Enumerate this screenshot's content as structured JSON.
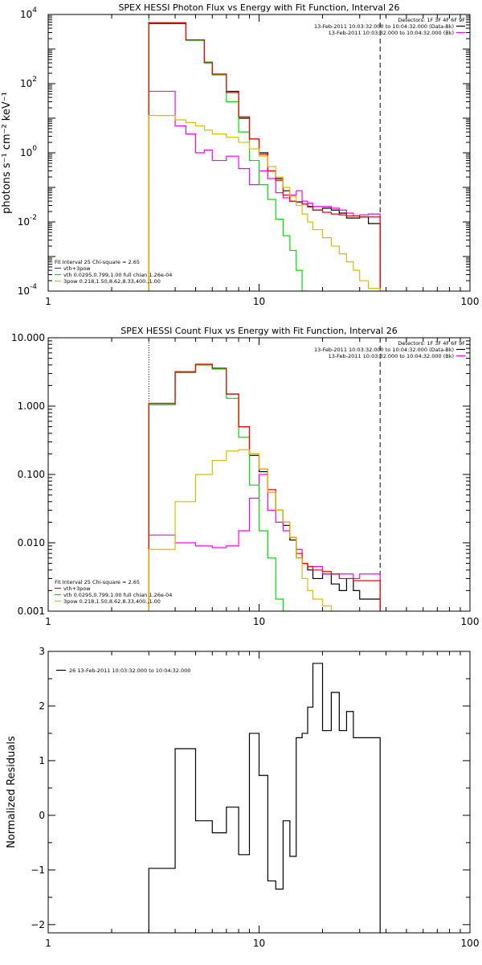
{
  "chart_data": [
    {
      "type": "line",
      "title": "SPEX HESSI Photon Flux vs Energy with Fit Function, Interval 26",
      "ylabel": "photons s⁻¹ cm⁻² keV⁻¹",
      "xlabel": "",
      "xscale": "log",
      "yscale": "log",
      "xlim": [
        1,
        100
      ],
      "ylim": [
        0.0001,
        10000
      ],
      "xticks": [
        {
          "v": 1,
          "label": "1"
        },
        {
          "v": 10,
          "label": "10"
        },
        {
          "v": 100,
          "label": "100"
        }
      ],
      "yticks": [
        {
          "v": 0.0001,
          "label": "10",
          "exp": "-4"
        },
        {
          "v": 0.01,
          "label": "10",
          "exp": "-2"
        },
        {
          "v": 1,
          "label": "10",
          "exp": "0"
        },
        {
          "v": 100,
          "label": "10",
          "exp": "2"
        },
        {
          "v": 10000,
          "label": "10",
          "exp": "4"
        }
      ],
      "vlines": [
        {
          "x": 3.0,
          "style": "dotted"
        },
        {
          "x": 37.5,
          "style": "dashed"
        }
      ],
      "legend_top": [
        "Detectors: 1F 3F 4F 6F 9F",
        "13-Feb-2011 10:03:32.000 to 10:04:32.000 (Data-Bk)",
        "13-Feb-2011 10:03:32.000 to 10:04:32.000 (Bk)"
      ],
      "legend_top_colors": [
        "",
        "#000000",
        "#ff00ff"
      ],
      "legend_bottom": [
        "Fit Interval 25   Chi-square = 2.65",
        "vth+3pow",
        "vth 0.0295,0.799,1.00  full chian 1.26e-04",
        "3pow 0.218,1.50,8.62,8.33,400.,1.00"
      ],
      "legend_bottom_colors": [
        "",
        "#ff0000",
        "#00dd00",
        "#ddbb00"
      ],
      "edges": [
        3.0,
        3.5,
        4.0,
        4.5,
        5.0,
        5.5,
        6.0,
        7.0,
        8.0,
        9.0,
        10.0,
        11.0,
        12.0,
        13.0,
        14.0,
        15.0,
        16.0,
        17.0,
        18.0,
        20.0,
        22.0,
        24.0,
        26.0,
        28.0,
        30.0,
        33.0,
        37.5,
        41.0
      ],
      "series": [
        {
          "color": "#000000",
          "values": [
            5500,
            5500,
            5500,
            1800,
            1800,
            400,
            180,
            60,
            10,
            2.5,
            1.0,
            0.3,
            0.18,
            0.08,
            0.04,
            0.038,
            0.033,
            0.028,
            0.022,
            0.025,
            0.022,
            0.018,
            0.013,
            0.013,
            0.014,
            0.009,
            null
          ]
        },
        {
          "color": "#ff00ff",
          "values": [
            60,
            60,
            6,
            3.5,
            1.0,
            1.2,
            0.6,
            0.8,
            0.35,
            0.12,
            0.3,
            0.18,
            0.07,
            0.05,
            0.06,
            0.08,
            0.04,
            0.035,
            0.028,
            0.028,
            0.025,
            0.022,
            0.018,
            0.015,
            0.016,
            0.017,
            null
          ]
        },
        {
          "color": "#00dd00",
          "values": [
            5800,
            5800,
            5800,
            1800,
            1800,
            400,
            180,
            30,
            4,
            0.6,
            0.12,
            0.045,
            0.012,
            0.004,
            0.0015,
            0.0004,
            0.0001,
            null,
            null,
            null,
            null,
            null,
            null,
            null,
            null,
            null,
            null
          ]
        },
        {
          "color": "#ff0000",
          "values": [
            5800,
            5800,
            5800,
            1850,
            1850,
            420,
            190,
            55,
            11,
            2.5,
            0.9,
            0.3,
            0.16,
            0.06,
            0.04,
            0.037,
            0.033,
            0.027,
            0.022,
            0.019,
            0.017,
            0.016,
            0.015,
            0.015,
            0.014,
            0.014,
            null
          ]
        },
        {
          "color": "#ddbb00",
          "values": [
            12,
            12,
            9,
            7.5,
            6.0,
            4.5,
            3.5,
            2.8,
            2.0,
            1.3,
            0.8,
            0.4,
            0.2,
            0.1,
            0.055,
            0.03,
            0.017,
            0.01,
            0.006,
            0.0035,
            0.002,
            0.0012,
            0.0007,
            0.0004,
            0.0002,
            0.00012,
            0.0001
          ]
        }
      ]
    },
    {
      "type": "line",
      "title": "SPEX HESSI Count Flux vs Energy with Fit Function, Interval 26",
      "ylabel": "",
      "xlabel": "",
      "xscale": "log",
      "yscale": "log",
      "xlim": [
        1,
        100
      ],
      "ylim": [
        0.001,
        10
      ],
      "xticks": [
        {
          "v": 1,
          "label": "1"
        },
        {
          "v": 10,
          "label": "10"
        },
        {
          "v": 100,
          "label": "100"
        }
      ],
      "yticks": [
        {
          "v": 0.001,
          "label": "0.001"
        },
        {
          "v": 0.01,
          "label": "0.010"
        },
        {
          "v": 0.1,
          "label": "0.100"
        },
        {
          "v": 1,
          "label": "1.000"
        },
        {
          "v": 10,
          "label": "10.000"
        }
      ],
      "vlines": [
        {
          "x": 3.0,
          "style": "dotted"
        },
        {
          "x": 37.5,
          "style": "dashed"
        }
      ],
      "legend_top": [
        "Detectors: 1F 3F 4F 6F 9F",
        "13-Feb-2011 10:03:32.000 to 10:04:32.000 (Data-Bk)",
        "13-Feb-2011 10:03:32.000 to 10:04:32.000 (Bk)"
      ],
      "legend_top_colors": [
        "",
        "#000000",
        "#ff00ff"
      ],
      "legend_bottom": [
        "Fit Interval 25   Chi-square = 2.65",
        "vth+3pow",
        "vth 0.0295,0.799,1.00  full chian 1.26e-04",
        "3pow 0.218,1.50,8.62,8.33,400.,1.00"
      ],
      "legend_bottom_colors": [
        "",
        "#ff0000",
        "#00dd00",
        "#ddbb00"
      ],
      "edges": [
        3.0,
        4.0,
        5.0,
        6.0,
        7.0,
        8.0,
        9.0,
        10.0,
        11.0,
        12.0,
        13.0,
        14.0,
        15.0,
        16.0,
        17.0,
        18.0,
        20.0,
        22.0,
        24.0,
        26.0,
        28.0,
        30.0,
        33.0,
        37.5
      ],
      "series": [
        {
          "color": "#000000",
          "values": [
            1.05,
            3.1,
            4.0,
            3.5,
            1.5,
            0.5,
            0.19,
            0.11,
            0.055,
            0.03,
            0.018,
            0.011,
            0.006,
            0.005,
            0.004,
            0.003,
            0.0035,
            0.0025,
            0.002,
            0.003,
            0.002,
            0.0015,
            0.0015
          ]
        },
        {
          "color": "#ff00ff",
          "values": [
            0.013,
            0.01,
            0.009,
            0.0085,
            0.009,
            0.015,
            0.045,
            0.1,
            0.03,
            0.02,
            0.015,
            0.012,
            0.008,
            0.005,
            0.0045,
            0.0045,
            0.0035,
            0.0035,
            0.0035,
            0.0035,
            0.003,
            0.0035,
            0.0035
          ]
        },
        {
          "color": "#00dd00",
          "values": [
            1.05,
            3.1,
            4.0,
            3.5,
            1.3,
            0.35,
            0.07,
            0.015,
            0.006,
            0.0015,
            0.001,
            null,
            null,
            null,
            null,
            null,
            null,
            null,
            null,
            null,
            null,
            null,
            null
          ]
        },
        {
          "color": "#ff0000",
          "values": [
            1.1,
            3.2,
            4.1,
            3.6,
            1.5,
            0.5,
            0.2,
            0.12,
            0.06,
            0.03,
            0.02,
            0.012,
            0.007,
            0.005,
            0.0045,
            0.004,
            0.0038,
            0.0035,
            0.003,
            0.003,
            0.0028,
            0.0028,
            0.0028
          ]
        },
        {
          "color": "#ddbb00",
          "values": [
            0.008,
            0.04,
            0.1,
            0.16,
            0.22,
            0.23,
            0.2,
            0.12,
            0.055,
            0.03,
            0.02,
            0.012,
            0.006,
            0.003,
            0.002,
            0.0015,
            0.0012,
            0.001,
            null,
            null,
            null,
            null,
            null
          ]
        }
      ]
    },
    {
      "type": "line",
      "title": "",
      "ylabel": "Normalized Residuals",
      "xlabel": "",
      "xscale": "log",
      "yscale": "linear",
      "xlim": [
        1,
        100
      ],
      "ylim": [
        -2.15,
        3.0
      ],
      "xticks": [
        {
          "v": 1,
          "label": "1"
        },
        {
          "v": 10,
          "label": "10"
        },
        {
          "v": 100,
          "label": "100"
        }
      ],
      "yticks": [
        {
          "v": -2,
          "label": "−2"
        },
        {
          "v": -1,
          "label": "−1"
        },
        {
          "v": 0,
          "label": "0"
        },
        {
          "v": 1,
          "label": "1"
        },
        {
          "v": 2,
          "label": "2"
        },
        {
          "v": 3,
          "label": "3"
        }
      ],
      "vlines": [],
      "legend_top": [],
      "legend_top_colors": [],
      "legend_bottom": [],
      "legend_bottom_colors": [],
      "legend_topleft": "26  13-Feb-2011 10:03:32.000 to 10:04:32.000",
      "edges": [
        3.0,
        4.0,
        5.0,
        6.0,
        7.0,
        8.0,
        9.0,
        10.0,
        11.0,
        12.0,
        13.0,
        14.0,
        15.0,
        16.0,
        17.0,
        18.0,
        20.0,
        22.0,
        24.0,
        26.0,
        28.0,
        30.0,
        33.0,
        37.5
      ],
      "series": [
        {
          "color": "#000000",
          "values": [
            -0.97,
            1.22,
            -0.1,
            -0.32,
            0.15,
            -0.72,
            1.5,
            0.73,
            -1.2,
            -1.35,
            -0.1,
            -0.75,
            1.42,
            1.5,
            1.98,
            2.78,
            1.55,
            2.25,
            1.55,
            1.9,
            1.42,
            1.42,
            1.42
          ]
        }
      ],
      "drop_to_floor": true
    }
  ]
}
